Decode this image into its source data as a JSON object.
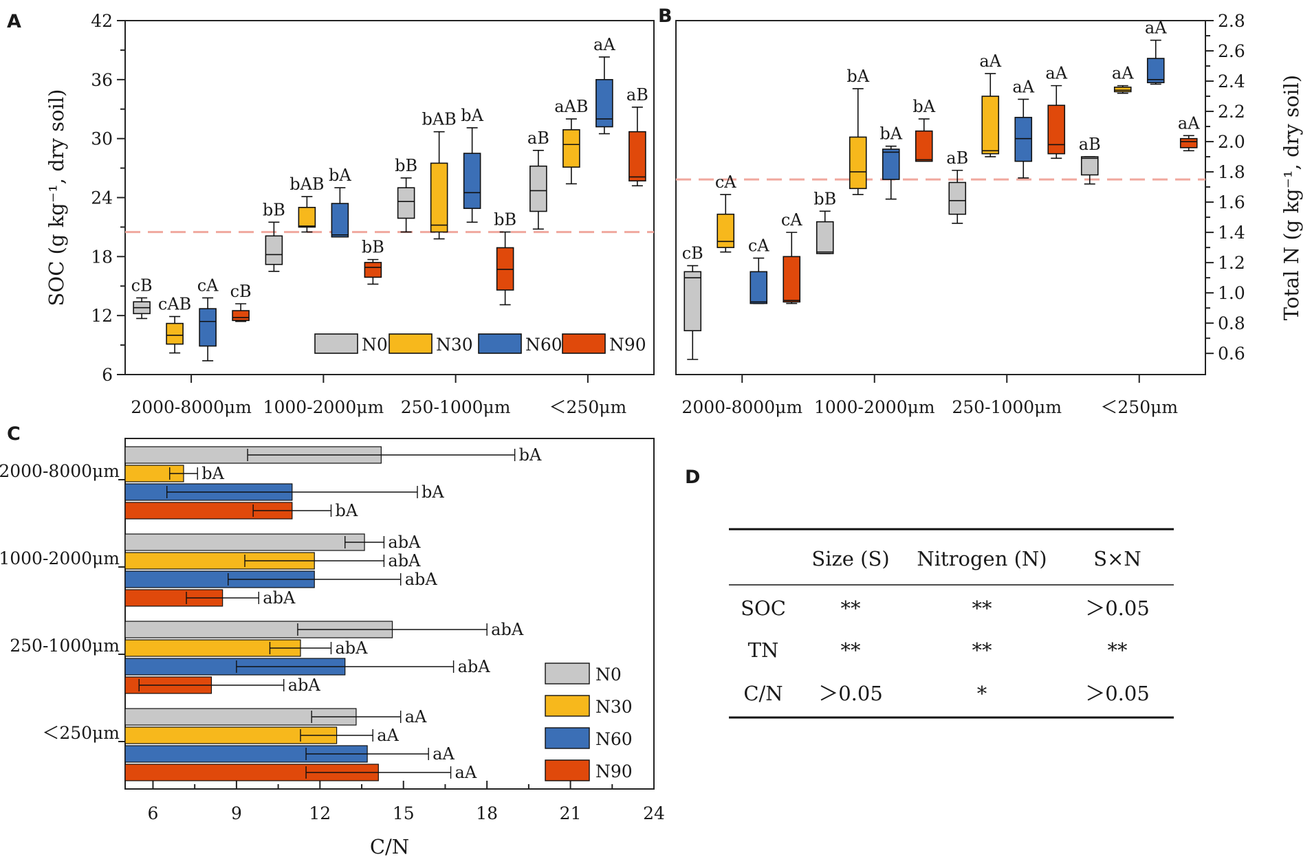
{
  "colors": {
    "N0": "#c8c8c8",
    "N30": "#f7b81c",
    "N60": "#3b6fb6",
    "N90": "#e0490b",
    "ref": "#f0a89e"
  },
  "legend": [
    "N0",
    "N30",
    "N60",
    "N90"
  ],
  "size_classes": [
    "2000-8000μm",
    "1000-2000μm",
    "250-1000μm",
    "＜250μm"
  ],
  "chart_data": [
    {
      "panel": "A",
      "type": "box",
      "ylabel": "SOC (g kg⁻¹, dry soil)",
      "ylim": [
        6,
        42
      ],
      "yticks": [
        6,
        12,
        18,
        24,
        30,
        36,
        42
      ],
      "reference_line": 20.5,
      "categories": [
        "2000-8000μm",
        "1000-2000μm",
        "250-1000μm",
        "＜250μm"
      ],
      "series": [
        {
          "name": "N0",
          "boxes": [
            {
              "min": 11.7,
              "q1": 12.2,
              "median": 12.8,
              "q3": 13.4,
              "max": 13.8,
              "label": "cB"
            },
            {
              "min": 16.5,
              "q1": 17.2,
              "median": 18.2,
              "q3": 20.1,
              "max": 21.5,
              "label": "bB"
            },
            {
              "min": 20.5,
              "q1": 21.9,
              "median": 23.6,
              "q3": 25,
              "max": 26,
              "label": "bB"
            },
            {
              "min": 20.8,
              "q1": 22.6,
              "median": 24.7,
              "q3": 27.2,
              "max": 28.8,
              "label": "aB"
            }
          ]
        },
        {
          "name": "N30",
          "boxes": [
            {
              "min": 8.2,
              "q1": 9.1,
              "median": 10,
              "q3": 11.2,
              "max": 11.9,
              "label": "cAB"
            },
            {
              "min": 20.5,
              "q1": 21,
              "median": 21.1,
              "q3": 23,
              "max": 24.1,
              "label": "bAB"
            },
            {
              "min": 19.8,
              "q1": 20.5,
              "median": 21.2,
              "q3": 27.5,
              "max": 30.7,
              "label": "bAB"
            },
            {
              "min": 25.4,
              "q1": 27.1,
              "median": 29.4,
              "q3": 30.9,
              "max": 32,
              "label": "aAB"
            }
          ]
        },
        {
          "name": "N60",
          "boxes": [
            {
              "min": 7.4,
              "q1": 8.9,
              "median": 11.4,
              "q3": 12.7,
              "max": 13.8,
              "label": "cA"
            },
            {
              "min": 20,
              "q1": 20,
              "median": 20.2,
              "q3": 23.4,
              "max": 25,
              "label": "bA"
            },
            {
              "min": 21.5,
              "q1": 22.9,
              "median": 24.5,
              "q3": 28.5,
              "max": 31.1,
              "label": "bA"
            },
            {
              "min": 30.5,
              "q1": 31.2,
              "median": 32,
              "q3": 36,
              "max": 38.3,
              "label": "aA"
            }
          ]
        },
        {
          "name": "N90",
          "boxes": [
            {
              "min": 11.4,
              "q1": 11.5,
              "median": 11.8,
              "q3": 12.5,
              "max": 13.2,
              "label": "cB"
            },
            {
              "min": 15.2,
              "q1": 15.9,
              "median": 16.9,
              "q3": 17.4,
              "max": 17.7,
              "label": "bB"
            },
            {
              "min": 13.1,
              "q1": 14.6,
              "median": 16.7,
              "q3": 18.9,
              "max": 20.5,
              "label": "bB"
            },
            {
              "min": 25.2,
              "q1": 25.7,
              "median": 26.1,
              "q3": 30.7,
              "max": 33.2,
              "label": "aB"
            }
          ]
        }
      ]
    },
    {
      "panel": "B",
      "type": "box",
      "ylabel": "Total N (g kg⁻¹, dry soil)",
      "ylim": [
        0.46,
        2.8
      ],
      "yticks": [
        0.6,
        0.8,
        1.0,
        1.2,
        1.4,
        1.6,
        1.8,
        2.0,
        2.2,
        2.4,
        2.6,
        2.8
      ],
      "reference_line": 1.75,
      "categories": [
        "2000-8000μm",
        "1000-2000μm",
        "250-1000μm",
        "＜250μm"
      ],
      "series": [
        {
          "name": "N0",
          "boxes": [
            {
              "min": 0.56,
              "q1": 0.75,
              "median": 1.1,
              "q3": 1.14,
              "max": 1.18,
              "label": "cB"
            },
            {
              "min": 1.26,
              "q1": 1.26,
              "median": 1.27,
              "q3": 1.47,
              "max": 1.54,
              "label": "bB"
            },
            {
              "min": 1.46,
              "q1": 1.52,
              "median": 1.61,
              "q3": 1.73,
              "max": 1.81,
              "label": "aB"
            },
            {
              "min": 1.72,
              "q1": 1.78,
              "median": 1.89,
              "q3": 1.9,
              "max": 1.9,
              "label": "aB"
            }
          ]
        },
        {
          "name": "N30",
          "boxes": [
            {
              "min": 1.27,
              "q1": 1.3,
              "median": 1.34,
              "q3": 1.52,
              "max": 1.65,
              "label": "cA"
            },
            {
              "min": 1.65,
              "q1": 1.69,
              "median": 1.8,
              "q3": 2.03,
              "max": 2.35,
              "label": "bA"
            },
            {
              "min": 1.9,
              "q1": 1.92,
              "median": 1.94,
              "q3": 2.3,
              "max": 2.45,
              "label": "aA"
            },
            {
              "min": 2.32,
              "q1": 2.33,
              "median": 2.34,
              "q3": 2.36,
              "max": 2.37,
              "label": "aA"
            }
          ]
        },
        {
          "name": "N60",
          "boxes": [
            {
              "min": 0.93,
              "q1": 0.93,
              "median": 0.94,
              "q3": 1.14,
              "max": 1.23,
              "label": "cA"
            },
            {
              "min": 1.62,
              "q1": 1.75,
              "median": 1.93,
              "q3": 1.95,
              "max": 1.97,
              "label": "bA"
            },
            {
              "min": 1.76,
              "q1": 1.87,
              "median": 2.02,
              "q3": 2.16,
              "max": 2.28,
              "label": "aA"
            },
            {
              "min": 2.38,
              "q1": 2.39,
              "median": 2.41,
              "q3": 2.55,
              "max": 2.67,
              "label": "aA"
            }
          ]
        },
        {
          "name": "N90",
          "boxes": [
            {
              "min": 0.93,
              "q1": 0.94,
              "median": 0.95,
              "q3": 1.24,
              "max": 1.4,
              "label": "cA"
            },
            {
              "min": 1.87,
              "q1": 1.87,
              "median": 1.88,
              "q3": 2.07,
              "max": 2.15,
              "label": "bA"
            },
            {
              "min": 1.89,
              "q1": 1.92,
              "median": 1.98,
              "q3": 2.24,
              "max": 2.37,
              "label": "aA"
            },
            {
              "min": 1.94,
              "q1": 1.96,
              "median": 2.0,
              "q3": 2.02,
              "max": 2.04,
              "label": "aA"
            }
          ]
        }
      ]
    },
    {
      "panel": "C",
      "type": "bar",
      "orientation": "horizontal",
      "xlabel": "C/N",
      "xlim": [
        5,
        24
      ],
      "xticks": [
        6,
        9,
        12,
        15,
        18,
        21,
        24
      ],
      "categories": [
        "2000-8000μm",
        "1000-2000μm",
        "250-1000μm",
        "＜250μm"
      ],
      "series": [
        {
          "name": "N0",
          "values": [
            14.2,
            13.6,
            14.6,
            13.3
          ],
          "errors": [
            4.8,
            0.7,
            3.4,
            1.6
          ],
          "labels": [
            "bA",
            "abA",
            "abA",
            "aA"
          ]
        },
        {
          "name": "N30",
          "values": [
            7.1,
            11.8,
            11.3,
            12.6
          ],
          "errors": [
            0.5,
            2.5,
            1.1,
            1.3
          ],
          "labels": [
            "bA",
            "abA",
            "abA",
            "aA"
          ]
        },
        {
          "name": "N60",
          "values": [
            11,
            11.8,
            12.9,
            13.7
          ],
          "errors": [
            4.5,
            3.1,
            3.9,
            2.2
          ],
          "labels": [
            "bA",
            "abA",
            "abA",
            "aA"
          ]
        },
        {
          "name": "N90",
          "values": [
            11,
            8.5,
            8.1,
            14.1
          ],
          "errors": [
            1.4,
            1.3,
            2.6,
            2.6
          ],
          "labels": [
            "bA",
            "abA",
            "abA",
            "aA"
          ]
        }
      ]
    }
  ],
  "table_d": {
    "panel": "D",
    "headers": [
      "",
      "Size (S)",
      "Nitrogen (N)",
      "S×N"
    ],
    "rows": [
      [
        "SOC",
        "**",
        "**",
        "＞0.05"
      ],
      [
        "TN",
        "**",
        "**",
        "**"
      ],
      [
        "C/N",
        "＞0.05",
        "*",
        "＞0.05"
      ]
    ]
  }
}
